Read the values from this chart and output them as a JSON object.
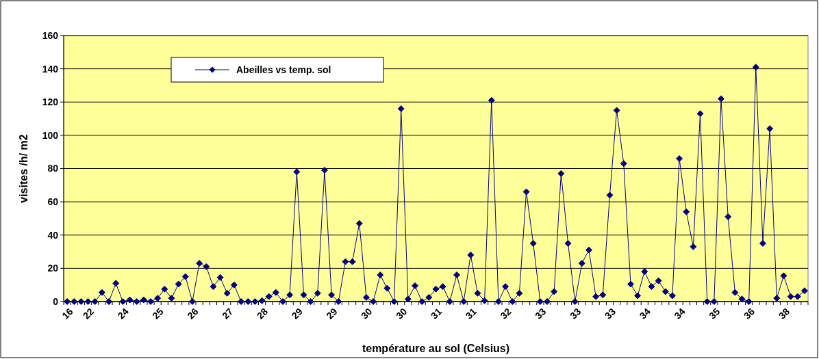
{
  "chart_data": {
    "type": "line",
    "xlabel": "température au sol (Celsius)",
    "ylabel": "visites /h/ m2",
    "categories": [
      "16",
      null,
      null,
      "22",
      null,
      null,
      null,
      null,
      "24",
      null,
      null,
      null,
      null,
      "25",
      null,
      null,
      null,
      null,
      "26",
      null,
      null,
      null,
      null,
      "27",
      null,
      null,
      null,
      null,
      "28",
      null,
      null,
      null,
      null,
      "29",
      null,
      null,
      null,
      null,
      "29",
      null,
      null,
      null,
      null,
      "30",
      null,
      null,
      null,
      null,
      "30",
      null,
      null,
      null,
      null,
      "31",
      null,
      null,
      null,
      null,
      "31",
      null,
      null,
      null,
      null,
      "32",
      null,
      null,
      null,
      null,
      "33",
      null,
      null,
      null,
      null,
      "33",
      null,
      null,
      null,
      null,
      "33",
      null,
      null,
      null,
      null,
      "34",
      null,
      null,
      null,
      null,
      "34",
      null,
      null,
      null,
      null,
      "35",
      null,
      null,
      null,
      null,
      "36",
      null,
      null,
      null,
      null,
      "38",
      null,
      null,
      null
    ],
    "series": [
      {
        "name": "Abeilles vs temp. sol",
        "color": "#000080",
        "values": [
          0,
          0,
          0,
          0,
          0,
          5.5,
          0,
          11,
          0,
          1,
          0,
          1,
          0,
          2,
          7.5,
          2,
          10.5,
          15,
          0,
          23,
          21,
          9,
          14.5,
          5,
          10,
          0,
          0,
          0,
          0.5,
          3,
          5.5,
          0,
          4,
          78,
          4,
          0,
          5,
          79,
          4,
          0,
          24,
          24,
          47,
          2.5,
          0,
          16,
          8,
          0,
          116,
          1.5,
          9.5,
          0,
          2.5,
          7.5,
          9,
          0,
          16,
          0,
          28,
          5,
          0.5,
          121,
          0,
          9,
          0,
          5,
          66,
          35,
          0,
          0,
          6,
          77,
          35,
          0,
          23,
          31,
          3,
          4,
          64,
          115,
          83,
          10.5,
          3.5,
          18,
          9,
          12.5,
          6,
          3.5,
          86,
          54,
          33,
          113,
          0,
          0,
          122,
          51,
          5.5,
          1.5,
          0,
          141,
          35,
          104,
          2,
          15.5,
          3,
          3,
          6.5
        ]
      }
    ],
    "ylim": [
      0,
      160
    ],
    "yticks": [
      0,
      20,
      40,
      60,
      80,
      100,
      120,
      140,
      160
    ],
    "grid": "y",
    "legend": "top left",
    "marker": "diamond",
    "line_style": "solid"
  }
}
